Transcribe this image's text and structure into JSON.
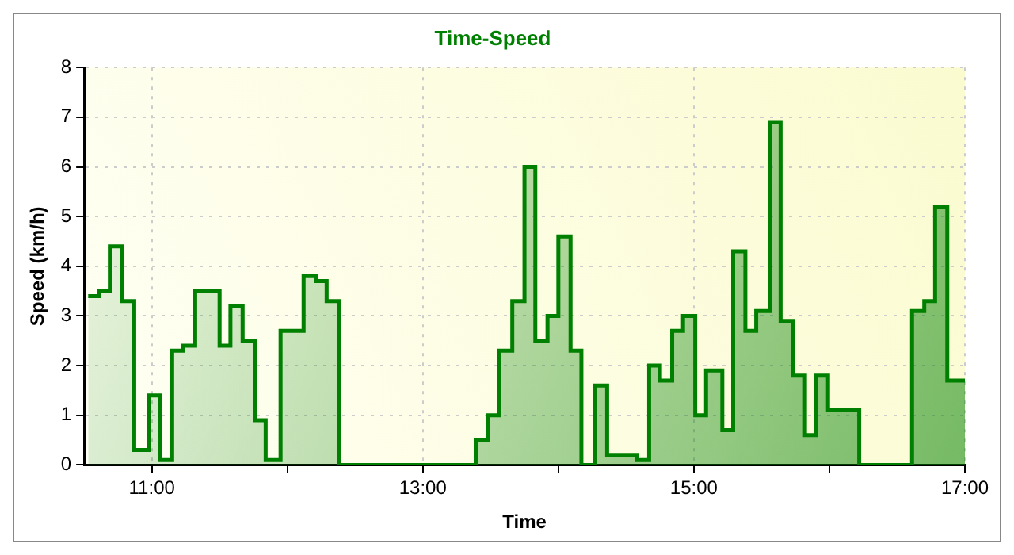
{
  "chart_data": {
    "type": "step",
    "title": "Time-Speed",
    "xlabel": "Time",
    "ylabel": "Speed (km/h)",
    "xlim": [
      10.5,
      17
    ],
    "xticks": [
      {
        "value": 11,
        "label": "11:00"
      },
      {
        "value": 12,
        "label": null
      },
      {
        "value": 13,
        "label": "13:00"
      },
      {
        "value": 14,
        "label": null
      },
      {
        "value": 15,
        "label": "15:00"
      },
      {
        "value": 16,
        "label": null
      },
      {
        "value": 17,
        "label": "17:00"
      }
    ],
    "ylim": [
      0,
      8
    ],
    "yticks": [
      0,
      1,
      2,
      3,
      4,
      5,
      6,
      7,
      8
    ],
    "grid": true,
    "series": [
      {
        "color": "#008000",
        "x": [
          10.53,
          10.61,
          10.69,
          10.78,
          10.87,
          10.98,
          11.06,
          11.15,
          11.23,
          11.32,
          11.41,
          11.5,
          11.58,
          11.67,
          11.76,
          11.84,
          11.95,
          12.03,
          12.12,
          12.21,
          12.29,
          12.38,
          13.39,
          13.48,
          13.56,
          13.66,
          13.75,
          13.83,
          13.92,
          14.0,
          14.09,
          14.17,
          14.27,
          14.36,
          14.58,
          14.67,
          14.75,
          14.84,
          14.92,
          15.01,
          15.09,
          15.21,
          15.29,
          15.38,
          15.46,
          15.56,
          15.64,
          15.73,
          15.82,
          15.9,
          15.99,
          16.22,
          16.61,
          16.7,
          16.78,
          16.87,
          17
        ],
        "values": [
          3.4,
          3.5,
          4.4,
          3.3,
          0.3,
          1.4,
          0.1,
          2.3,
          2.4,
          3.5,
          3.5,
          2.4,
          3.2,
          2.5,
          0.9,
          0.1,
          2.7,
          2.7,
          3.8,
          3.7,
          3.3,
          0,
          0.5,
          1.0,
          2.3,
          3.3,
          6.0,
          2.5,
          3.0,
          4.6,
          2.3,
          0,
          1.6,
          0.2,
          0.1,
          2.0,
          1.7,
          2.7,
          3.0,
          1.0,
          1.9,
          0.7,
          4.3,
          2.7,
          3.1,
          6.9,
          2.9,
          1.8,
          0.6,
          1.8,
          1.1,
          0,
          3.1,
          3.3,
          5.2,
          1.7,
          1.7
        ]
      }
    ]
  }
}
